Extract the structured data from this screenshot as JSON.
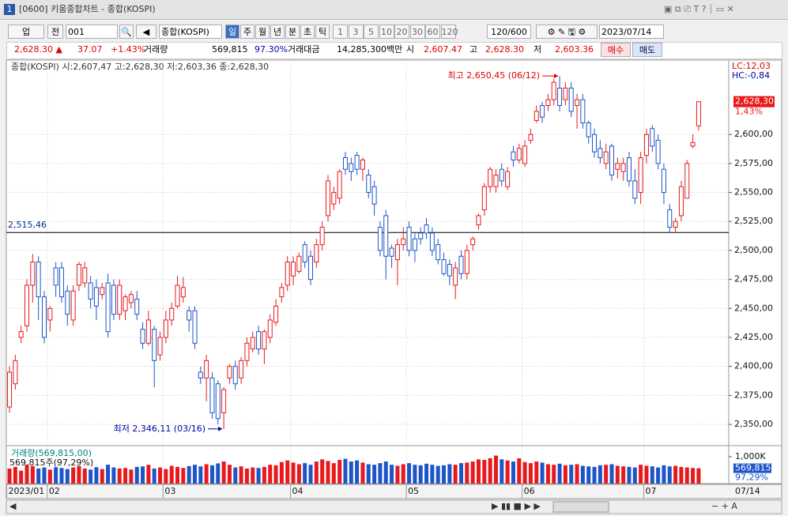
{
  "window": {
    "title": "[0600] 키움종합차트 - 종합(KOSPI)"
  },
  "toolbar": {
    "market": "업",
    "range": "전",
    "code": "001",
    "name": "종합(KOSPI)",
    "periods": [
      "일",
      "주",
      "월",
      "년",
      "분",
      "초",
      "틱"
    ],
    "intervals": [
      "1",
      "3",
      "5",
      "10",
      "20",
      "30",
      "60",
      "120"
    ],
    "count": "120/600",
    "date": "2023/07/14"
  },
  "info": {
    "price": "2,628.30 ▲",
    "change": "37.07",
    "rate": "+1.43%",
    "volume_label": "거래량",
    "volume": "569,815",
    "volume_rate": "97.30%",
    "amount_label": "거래대금",
    "amount": "14,285,300백만",
    "open_label": "시",
    "open": "2,607.47",
    "high_label": "고",
    "high": "2,628.30",
    "low_label": "저",
    "low": "2,603.36",
    "buy": "매수",
    "sell": "매도"
  },
  "chart_data": {
    "type": "candlestick",
    "legend": "종합(KOSPI) 시:2,607,47 고:2,628,30 저:2,603,36 종:2,628,30",
    "up_color": "#e8191c",
    "down_color": "#1d55c8",
    "xlim": [
      -0.55,
      124.2
    ],
    "ylim": [
      2333,
      2656
    ],
    "yticks": [
      {
        "value": 2350,
        "label": "2,350,00"
      },
      {
        "value": 2375,
        "label": "2,375,00"
      },
      {
        "value": 2400,
        "label": "2,400,00"
      },
      {
        "value": 2425,
        "label": "2,425,00"
      },
      {
        "value": 2450,
        "label": "2,450,00"
      },
      {
        "value": 2475,
        "label": "2,475,00"
      },
      {
        "value": 2500,
        "label": "2,500,00"
      },
      {
        "value": 2525,
        "label": "2,525,00"
      },
      {
        "value": 2550,
        "label": "2,550,00"
      },
      {
        "value": 2575,
        "label": "2,575,00"
      },
      {
        "value": 2600,
        "label": "2,600,00"
      }
    ],
    "grid": true,
    "x_labels": [
      {
        "index": 0,
        "label": "2023/01"
      },
      {
        "index": 7,
        "label": "02"
      },
      {
        "index": 27,
        "label": "03"
      },
      {
        "index": 49,
        "label": "04"
      },
      {
        "index": 69,
        "label": "05"
      },
      {
        "index": 89,
        "label": "06"
      },
      {
        "index": 110,
        "label": "07"
      }
    ],
    "last_date": "07/14",
    "hline": {
      "value": 2515.46,
      "label": "2,515,46"
    },
    "high_note": {
      "index": 95,
      "value": 2650.45,
      "label": "최고 2,650,45 (06/12)"
    },
    "low_note": {
      "index": 37,
      "value": 2346.11,
      "label": "최저 2,346,11 (03/16)"
    },
    "last": {
      "value": 2628.3,
      "label": "2,628,30",
      "rate": "1,43%"
    },
    "lc": "LC:12,03",
    "hc": "HC:-0,84",
    "ohlc": [
      [
        2365,
        2400,
        2360,
        2395
      ],
      [
        2385,
        2410,
        2380,
        2405
      ],
      [
        2425,
        2435,
        2420,
        2430
      ],
      [
        2435,
        2475,
        2430,
        2470
      ],
      [
        2470,
        2497,
        2455,
        2490
      ],
      [
        2490,
        2495,
        2440,
        2460
      ],
      [
        2460,
        2465,
        2420,
        2425
      ],
      [
        2440,
        2452,
        2430,
        2450
      ],
      [
        2485,
        2490,
        2460,
        2470
      ],
      [
        2485,
        2490,
        2455,
        2460
      ],
      [
        2465,
        2470,
        2435,
        2445
      ],
      [
        2440,
        2470,
        2435,
        2465
      ],
      [
        2470,
        2490,
        2465,
        2488
      ],
      [
        2472,
        2490,
        2468,
        2485
      ],
      [
        2472,
        2478,
        2450,
        2458
      ],
      [
        2468,
        2475,
        2440,
        2452
      ],
      [
        2462,
        2472,
        2458,
        2468
      ],
      [
        2472,
        2480,
        2425,
        2430
      ],
      [
        2470,
        2475,
        2440,
        2445
      ],
      [
        2445,
        2475,
        2440,
        2470
      ],
      [
        2448,
        2462,
        2440,
        2460
      ],
      [
        2455,
        2465,
        2450,
        2462
      ],
      [
        2458,
        2465,
        2440,
        2445
      ],
      [
        2432,
        2438,
        2415,
        2420
      ],
      [
        2420,
        2448,
        2418,
        2440
      ],
      [
        2432,
        2435,
        2382,
        2405
      ],
      [
        2410,
        2430,
        2405,
        2425
      ],
      [
        2425,
        2448,
        2420,
        2440
      ],
      [
        2440,
        2455,
        2435,
        2450
      ],
      [
        2452,
        2478,
        2450,
        2470
      ],
      [
        2460,
        2477,
        2455,
        2468
      ],
      [
        2448,
        2452,
        2430,
        2440
      ],
      [
        2448,
        2452,
        2415,
        2420
      ],
      [
        2395,
        2400,
        2385,
        2390
      ],
      [
        2390,
        2410,
        2370,
        2405
      ],
      [
        2390,
        2395,
        2355,
        2360
      ],
      [
        2385,
        2388,
        2350,
        2355
      ],
      [
        2360,
        2382,
        2346.11,
        2380
      ],
      [
        2390,
        2402,
        2385,
        2400
      ],
      [
        2400,
        2405,
        2380,
        2385
      ],
      [
        2390,
        2408,
        2385,
        2405
      ],
      [
        2405,
        2425,
        2400,
        2420
      ],
      [
        2415,
        2430,
        2412,
        2425
      ],
      [
        2430,
        2435,
        2410,
        2415
      ],
      [
        2415,
        2432,
        2402,
        2430
      ],
      [
        2425,
        2445,
        2420,
        2440
      ],
      [
        2438,
        2458,
        2435,
        2452
      ],
      [
        2460,
        2472,
        2455,
        2468
      ],
      [
        2470,
        2495,
        2465,
        2490
      ],
      [
        2478,
        2495,
        2470,
        2490
      ],
      [
        2482,
        2498,
        2480,
        2495
      ],
      [
        2505,
        2508,
        2485,
        2490
      ],
      [
        2495,
        2500,
        2470,
        2475
      ],
      [
        2490,
        2510,
        2485,
        2505
      ],
      [
        2505,
        2525,
        2500,
        2520
      ],
      [
        2530,
        2565,
        2525,
        2560
      ],
      [
        2540,
        2555,
        2535,
        2550
      ],
      [
        2545,
        2570,
        2540,
        2568
      ],
      [
        2580,
        2585,
        2565,
        2570
      ],
      [
        2575,
        2580,
        2560,
        2568
      ],
      [
        2582,
        2585,
        2565,
        2570
      ],
      [
        2570,
        2580,
        2560,
        2578
      ],
      [
        2565,
        2570,
        2545,
        2550
      ],
      [
        2555,
        2560,
        2530,
        2540
      ],
      [
        2520,
        2525,
        2495,
        2500
      ],
      [
        2530,
        2535,
        2475,
        2495
      ],
      [
        2502,
        2505,
        2485,
        2495
      ],
      [
        2492,
        2510,
        2470,
        2505
      ],
      [
        2505,
        2520,
        2500,
        2510
      ],
      [
        2520,
        2525,
        2495,
        2500
      ],
      [
        2510,
        2515,
        2490,
        2500
      ],
      [
        2515,
        2520,
        2505,
        2510
      ],
      [
        2522,
        2528,
        2510,
        2515
      ],
      [
        2515,
        2520,
        2495,
        2500
      ],
      [
        2505,
        2510,
        2488,
        2492
      ],
      [
        2492,
        2498,
        2478,
        2480
      ],
      [
        2488,
        2492,
        2470,
        2478
      ],
      [
        2470,
        2490,
        2458,
        2485
      ],
      [
        2495,
        2500,
        2475,
        2480
      ],
      [
        2480,
        2505,
        2475,
        2500
      ],
      [
        2505,
        2512,
        2500,
        2510
      ],
      [
        2522,
        2532,
        2518,
        2530
      ],
      [
        2535,
        2558,
        2530,
        2555
      ],
      [
        2555,
        2572,
        2550,
        2570
      ],
      [
        2555,
        2570,
        2550,
        2565
      ],
      [
        2570,
        2575,
        2555,
        2560
      ],
      [
        2555,
        2572,
        2552,
        2568
      ],
      [
        2585,
        2590,
        2572,
        2578
      ],
      [
        2578,
        2592,
        2575,
        2588
      ],
      [
        2575,
        2595,
        2572,
        2590
      ],
      [
        2595,
        2605,
        2592,
        2600
      ],
      [
        2612,
        2625,
        2610,
        2620
      ],
      [
        2625,
        2628,
        2610,
        2615
      ],
      [
        2625,
        2635,
        2620,
        2630
      ],
      [
        2630,
        2648,
        2625,
        2645
      ],
      [
        2640,
        2650.45,
        2620,
        2625
      ],
      [
        2630,
        2645,
        2625,
        2640
      ],
      [
        2640,
        2645,
        2615,
        2620
      ],
      [
        2625,
        2635,
        2605,
        2630
      ],
      [
        2630,
        2635,
        2605,
        2610
      ],
      [
        2610,
        2612,
        2592,
        2598
      ],
      [
        2600,
        2605,
        2580,
        2585
      ],
      [
        2588,
        2595,
        2575,
        2580
      ],
      [
        2575,
        2592,
        2570,
        2585
      ],
      [
        2590,
        2592,
        2560,
        2565
      ],
      [
        2570,
        2580,
        2562,
        2575
      ],
      [
        2568,
        2580,
        2560,
        2575
      ],
      [
        2580,
        2585,
        2555,
        2560
      ],
      [
        2560,
        2570,
        2540,
        2545
      ],
      [
        2550,
        2585,
        2540,
        2580
      ],
      [
        2582,
        2605,
        2575,
        2600
      ],
      [
        2605,
        2608,
        2585,
        2590
      ],
      [
        2595,
        2600,
        2570,
        2575
      ],
      [
        2570,
        2575,
        2540,
        2550
      ],
      [
        2535,
        2540,
        2515,
        2520
      ],
      [
        2520,
        2528,
        2515,
        2525
      ],
      [
        2530,
        2560,
        2525,
        2555
      ],
      [
        2545,
        2578,
        2545,
        2575
      ],
      [
        2590,
        2600,
        2588,
        2593
      ],
      [
        2607.47,
        2628.3,
        2603.36,
        2628.3
      ]
    ],
    "volume_title": "거래량(569,815,00)",
    "volume_note": "569,815주(97,29%)",
    "volume_ylim": [
      0,
      1350000
    ],
    "volume_yticks": [
      {
        "value": 1000000,
        "label": "1,000K"
      }
    ],
    "volume_last": {
      "value": 569815,
      "label": "569,815",
      "rate": "97,29%"
    },
    "volume": [
      560000,
      620000,
      480000,
      700000,
      650000,
      560000,
      600000,
      520000,
      610000,
      580000,
      540000,
      600000,
      650000,
      560000,
      520000,
      610000,
      540000,
      700000,
      600000,
      560000,
      580000,
      520000,
      620000,
      640000,
      700000,
      560000,
      600000,
      540000,
      660000,
      620000,
      580000,
      650000,
      700000,
      640000,
      720000,
      680000,
      750000,
      820000,
      700000,
      600000,
      640000,
      560000,
      600000,
      580000,
      620000,
      700000,
      680000,
      800000,
      860000,
      780000,
      720000,
      760000,
      700000,
      820000,
      900000,
      840000,
      760000,
      880000,
      920000,
      820000,
      860000,
      780000,
      720000,
      700000,
      760000,
      820000,
      700000,
      660000,
      720000,
      760000,
      700000,
      680000,
      740000,
      700000,
      660000,
      680000,
      720000,
      700000,
      760000,
      780000,
      820000,
      900000,
      880000,
      940000,
      1040000,
      900000,
      860000,
      820000,
      940000,
      800000,
      760000,
      820000,
      780000,
      720000,
      700000,
      740000,
      680000,
      700000,
      720000,
      660000,
      640000,
      620000,
      680000,
      700000,
      720000,
      660000,
      640000,
      620000,
      600000,
      700000,
      660000,
      640000,
      600000,
      680000,
      640000,
      660000,
      620000,
      600000,
      580000,
      569815
    ]
  }
}
